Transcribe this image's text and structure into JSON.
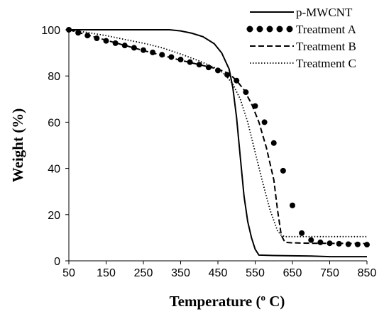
{
  "chart_data": {
    "type": "line",
    "xlabel": "Temperature (",
    "xlabel_sup": "o",
    "xlabel_suffix": " C)",
    "ylabel": "Weight (%)",
    "xlim": [
      50,
      850
    ],
    "ylim": [
      0,
      100
    ],
    "xticks": [
      "50",
      "150",
      "250",
      "350",
      "450",
      "550",
      "650",
      "750",
      "850"
    ],
    "yticks": [
      "0",
      "20",
      "40",
      "60",
      "80",
      "100"
    ],
    "grid": false,
    "legend_position": "top-right",
    "series": [
      {
        "name": "p-MWCNT",
        "style": "solid",
        "color": "#000000",
        "x": [
          50,
          150,
          250,
          320,
          350,
          380,
          410,
          440,
          460,
          480,
          490,
          500,
          510,
          520,
          530,
          540,
          550,
          560,
          600,
          700,
          750,
          850
        ],
        "y": [
          100,
          100,
          100,
          100,
          99.5,
          98.5,
          97,
          94,
          90,
          83,
          75,
          62,
          45,
          28,
          17,
          10,
          5,
          2.5,
          2.3,
          2.1,
          1.8,
          1.8
        ]
      },
      {
        "name": "Treatment A",
        "style": "dotted-large",
        "color": "#000000",
        "x": [
          50,
          75,
          100,
          125,
          150,
          175,
          200,
          225,
          250,
          275,
          300,
          325,
          350,
          375,
          400,
          425,
          450,
          475,
          500,
          525,
          550,
          575,
          600,
          625,
          650,
          675,
          700,
          725,
          750,
          775,
          800,
          825,
          850
        ],
        "y": [
          100,
          98.7,
          97.5,
          96.3,
          95.2,
          94.2,
          93.2,
          92.2,
          91.2,
          90.2,
          89.2,
          88.2,
          87.1,
          86,
          84.9,
          83.7,
          82.4,
          80.5,
          78,
          73,
          67,
          60,
          51,
          39,
          24,
          12,
          9,
          8,
          7.6,
          7.4,
          7.2,
          7.1,
          7
        ]
      },
      {
        "name": "Treatment B",
        "style": "dashed",
        "color": "#000000",
        "x": [
          50,
          150,
          250,
          350,
          450,
          480,
          500,
          520,
          540,
          560,
          580,
          600,
          610,
          620,
          630,
          650,
          700,
          850
        ],
        "y": [
          100,
          95.5,
          91,
          86.8,
          83,
          81,
          78,
          74,
          68,
          60,
          49,
          35,
          22,
          11,
          8,
          7.8,
          7.6,
          7.5
        ]
      },
      {
        "name": "Treatment C",
        "style": "dotted",
        "color": "#000000",
        "x": [
          50,
          100,
          150,
          200,
          250,
          300,
          350,
          400,
          450,
          470,
          490,
          510,
          530,
          550,
          570,
          590,
          610,
          620,
          630,
          660,
          700,
          850
        ],
        "y": [
          100,
          98.8,
          97.5,
          95.8,
          94.2,
          92.2,
          89.5,
          86.5,
          83,
          80.5,
          76.5,
          70,
          60,
          47,
          34,
          22,
          13,
          11,
          10.5,
          10.5,
          10.5,
          10.5
        ]
      }
    ]
  }
}
